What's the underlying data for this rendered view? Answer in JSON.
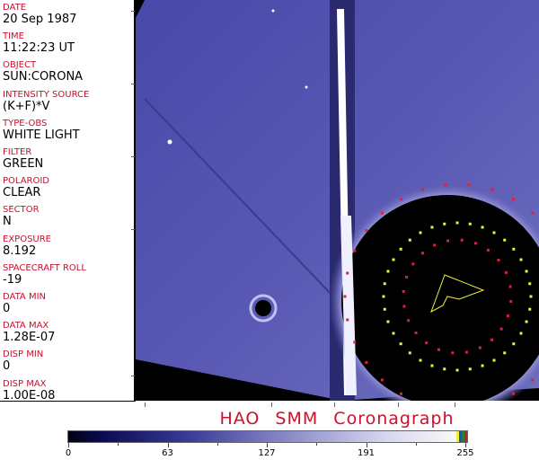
{
  "fields": [
    {
      "label": "DATE",
      "value": "20 Sep 1987"
    },
    {
      "label": "TIME",
      "value": "11:22:23 UT"
    },
    {
      "label": "OBJECT",
      "value": "SUN:CORONA"
    },
    {
      "label": "INTENSITY SOURCE",
      "value": "(K+F)*V"
    },
    {
      "label": "TYPE-OBS",
      "value": "WHITE LIGHT"
    },
    {
      "label": "FILTER",
      "value": "GREEN"
    },
    {
      "label": "POLAROID",
      "value": "CLEAR"
    },
    {
      "label": "SECTOR",
      "value": "N"
    },
    {
      "label": "EXPOSURE",
      "value": "8.192"
    },
    {
      "label": "SPACECRAFT ROLL",
      "value": "-19"
    },
    {
      "label": "DATA MIN",
      "value": "0"
    },
    {
      "label": "DATA MAX",
      "value": "1.28E-07"
    },
    {
      "label": "DISP MIN",
      "value": "0"
    },
    {
      "label": "DISP MAX",
      "value": "1.00E-08"
    }
  ],
  "title": "HAO  SMM  Coronagraph",
  "colorbar": {
    "labels": [
      "0",
      "63",
      "127",
      "191",
      "255"
    ],
    "min": 0,
    "max": 255,
    "colors": {
      "low": "#000010",
      "mid": "#3a3a98",
      "high": "#fafafa"
    }
  },
  "colors": {
    "label": "#c8102e",
    "marker_red": "#e0203a",
    "marker_yellow": "#f0f040",
    "panel_blue": "#4a4aa8"
  }
}
